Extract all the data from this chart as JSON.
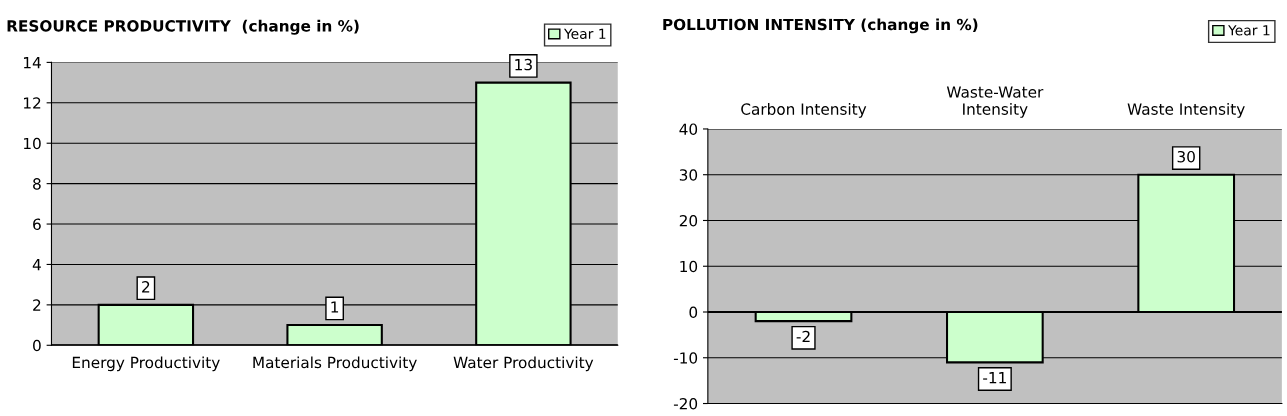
{
  "chart_data": [
    {
      "type": "bar",
      "title": "RESOURCE PRODUCTIVITY  (change in %)",
      "categories": [
        "Energy Productivity",
        "Materials Productivity",
        "Water Productivity"
      ],
      "series": [
        {
          "name": "Year 1",
          "color": "#ccffcc",
          "values": [
            2,
            1,
            13
          ]
        }
      ],
      "ylim": [
        0,
        14
      ],
      "yticks": [
        0,
        2,
        4,
        6,
        8,
        10,
        12,
        14
      ],
      "grid": "y",
      "legend": "top right",
      "data_labels": true
    },
    {
      "type": "bar",
      "title": "POLLUTION INTENSITY (change in %)",
      "categories": [
        "Carbon Intensity",
        "Waste-Water\nIntensity",
        "Waste Intensity"
      ],
      "series": [
        {
          "name": "Year 1",
          "color": "#ccffcc",
          "values": [
            -2,
            -11,
            30
          ]
        }
      ],
      "ylim": [
        -20,
        40
      ],
      "yticks": [
        -20,
        -10,
        0,
        10,
        20,
        30,
        40
      ],
      "grid": "y",
      "legend": "top right",
      "data_labels": true
    }
  ]
}
